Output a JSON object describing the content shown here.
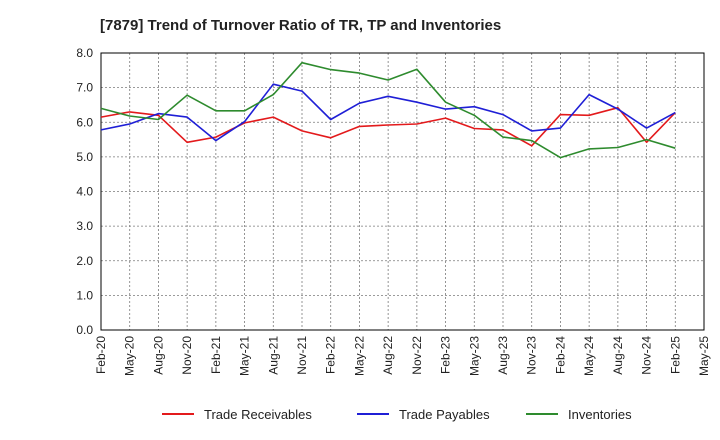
{
  "chart_data": {
    "type": "line",
    "title": "[7879]  Trend of Turnover Ratio of TR, TP and Inventories",
    "xlabel": "",
    "ylabel": "",
    "ylim": [
      0,
      8
    ],
    "y_ticks": [
      "0.0",
      "1.0",
      "2.0",
      "3.0",
      "4.0",
      "5.0",
      "6.0",
      "7.0",
      "8.0"
    ],
    "x": [
      "Feb-20",
      "May-20",
      "Aug-20",
      "Nov-20",
      "Feb-21",
      "May-21",
      "Aug-21",
      "Nov-21",
      "Feb-22",
      "May-22",
      "Aug-22",
      "Nov-22",
      "Feb-23",
      "May-23",
      "Aug-23",
      "Nov-23",
      "Feb-24",
      "May-24",
      "Aug-24",
      "Nov-24",
      "Feb-25",
      "May-25"
    ],
    "grid": true,
    "legend_position": "bottom",
    "series": [
      {
        "name": "Trade Receivables",
        "color": "#e31a1c",
        "values": [
          6.15,
          6.3,
          6.2,
          5.42,
          5.57,
          5.98,
          6.15,
          5.75,
          5.55,
          5.88,
          5.92,
          5.95,
          6.12,
          5.82,
          5.78,
          5.32,
          6.22,
          6.2,
          6.42,
          5.42,
          6.28,
          null
        ]
      },
      {
        "name": "Trade Payables",
        "color": "#1f1fd6",
        "values": [
          5.78,
          5.95,
          6.25,
          6.15,
          5.47,
          6.02,
          7.1,
          6.9,
          6.08,
          6.55,
          6.75,
          6.58,
          6.38,
          6.45,
          6.22,
          5.75,
          5.83,
          6.8,
          6.38,
          5.83,
          6.28,
          null
        ]
      },
      {
        "name": "Inventories",
        "color": "#2e8b2e",
        "values": [
          6.4,
          6.18,
          6.08,
          6.78,
          6.33,
          6.33,
          6.8,
          7.72,
          7.52,
          7.42,
          7.22,
          7.53,
          6.58,
          6.2,
          5.57,
          5.47,
          4.98,
          5.23,
          5.27,
          5.5,
          5.25,
          null
        ]
      }
    ]
  }
}
